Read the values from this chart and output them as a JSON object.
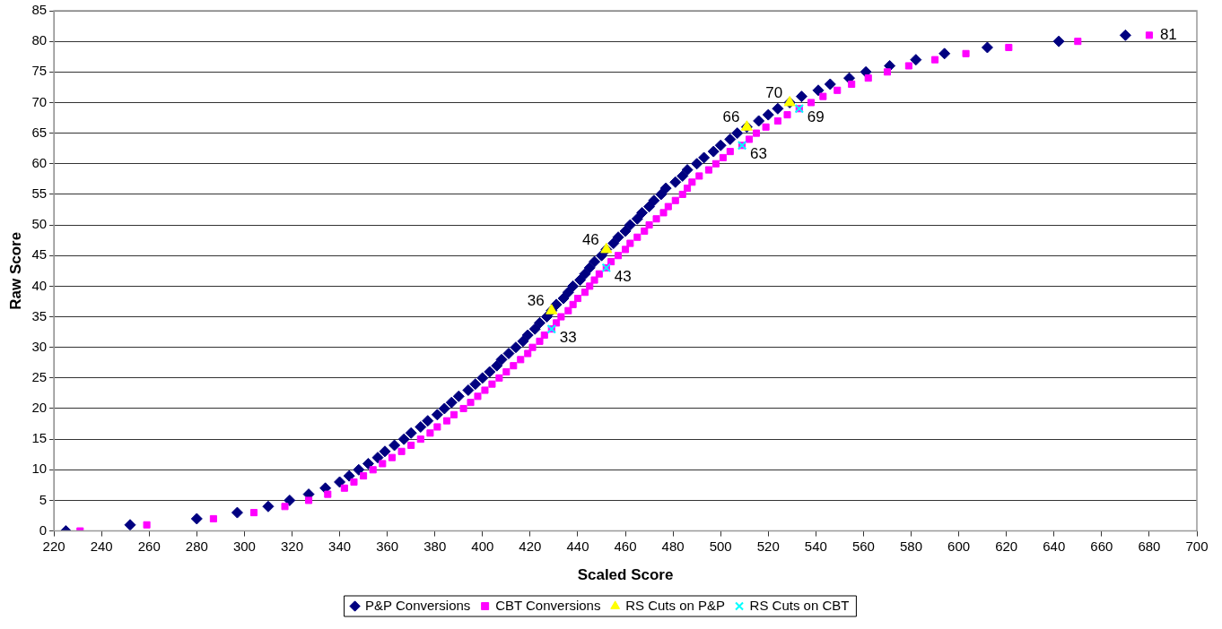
{
  "chart_data": {
    "type": "scatter",
    "xlabel": "Scaled Score",
    "ylabel": "Raw Score",
    "xlim": [
      220,
      700
    ],
    "ylim": [
      0,
      85
    ],
    "xticks": [
      220,
      240,
      260,
      280,
      300,
      320,
      340,
      360,
      380,
      400,
      420,
      440,
      460,
      480,
      500,
      520,
      540,
      560,
      580,
      600,
      620,
      640,
      660,
      680,
      700
    ],
    "yticks": [
      0,
      5,
      10,
      15,
      20,
      25,
      30,
      35,
      40,
      45,
      50,
      55,
      60,
      65,
      70,
      75,
      80,
      85
    ],
    "grid": "y",
    "legend": "bottom",
    "series": [
      {
        "name": "P&P Conversions",
        "color": "#000080",
        "marker": "diamond",
        "x": [
          225,
          252,
          280,
          297,
          310,
          319,
          327,
          334,
          340,
          344,
          348,
          352,
          356,
          359,
          363,
          367,
          370,
          374,
          377,
          381,
          384,
          387,
          390,
          394,
          397,
          400,
          403,
          406,
          408,
          411,
          414,
          417,
          419,
          422,
          424,
          427,
          429,
          431,
          434,
          436,
          438,
          441,
          443,
          445,
          447,
          450,
          452,
          455,
          457,
          460,
          462,
          465,
          467,
          470,
          472,
          475,
          477,
          481,
          484,
          486,
          490,
          493,
          497,
          500,
          504,
          507,
          511,
          516,
          520,
          524,
          529,
          534,
          541,
          546,
          554,
          561,
          571,
          582,
          594,
          612,
          642,
          670
        ],
        "values": [
          0,
          1,
          2,
          3,
          4,
          5,
          6,
          7,
          8,
          9,
          10,
          11,
          12,
          13,
          14,
          15,
          16,
          17,
          18,
          19,
          20,
          21,
          22,
          23,
          24,
          25,
          26,
          27,
          28,
          29,
          30,
          31,
          32,
          33,
          34,
          35,
          36,
          37,
          38,
          39,
          40,
          41,
          42,
          43,
          44,
          45,
          46,
          47,
          48,
          49,
          50,
          51,
          52,
          53,
          54,
          55,
          56,
          57,
          58,
          59,
          60,
          61,
          62,
          63,
          64,
          65,
          66,
          67,
          68,
          69,
          70,
          71,
          72,
          73,
          74,
          75,
          76,
          77,
          78,
          79,
          80,
          81
        ]
      },
      {
        "name": "CBT Conversions",
        "color": "#ff00ff",
        "marker": "square",
        "x": [
          231,
          259,
          287,
          304,
          317,
          327,
          335,
          342,
          346,
          350,
          354,
          358,
          362,
          366,
          370,
          374,
          378,
          381,
          385,
          388,
          392,
          395,
          398,
          401,
          404,
          407,
          410,
          413,
          416,
          419,
          421,
          424,
          426,
          429,
          431,
          433,
          436,
          438,
          440,
          443,
          445,
          447,
          449,
          452,
          454,
          457,
          460,
          462,
          465,
          468,
          470,
          473,
          476,
          478,
          481,
          484,
          486,
          488,
          491,
          495,
          498,
          501,
          504,
          509,
          512,
          515,
          519,
          524,
          528,
          533,
          538,
          543,
          549,
          555,
          562,
          570,
          579,
          590,
          603,
          621,
          650,
          680
        ],
        "values": [
          0,
          1,
          2,
          3,
          4,
          5,
          6,
          7,
          8,
          9,
          10,
          11,
          12,
          13,
          14,
          15,
          16,
          17,
          18,
          19,
          20,
          21,
          22,
          23,
          24,
          25,
          26,
          27,
          28,
          29,
          30,
          31,
          32,
          33,
          34,
          35,
          36,
          37,
          38,
          39,
          40,
          41,
          42,
          43,
          44,
          45,
          46,
          47,
          48,
          49,
          50,
          51,
          52,
          53,
          54,
          55,
          56,
          57,
          58,
          59,
          60,
          61,
          62,
          63,
          64,
          65,
          66,
          67,
          68,
          69,
          70,
          71,
          72,
          73,
          74,
          75,
          76,
          77,
          78,
          79,
          80,
          81
        ]
      },
      {
        "name": "RS Cuts on P&P",
        "color": "#ffff00",
        "marker": "triangle",
        "x": [
          429,
          452,
          511,
          529
        ],
        "values": [
          36,
          46,
          66,
          70
        ],
        "value_labels": [
          "36",
          "46",
          "66",
          "70"
        ]
      },
      {
        "name": "RS Cuts on CBT",
        "color": "#00ffff",
        "marker": "cross",
        "x": [
          429,
          452,
          509,
          533
        ],
        "values": [
          33,
          43,
          63,
          69
        ],
        "value_labels": [
          "33",
          "43",
          "63",
          "69"
        ]
      }
    ],
    "annotations": [
      {
        "text": "81",
        "x": 680,
        "y": 81
      }
    ]
  }
}
